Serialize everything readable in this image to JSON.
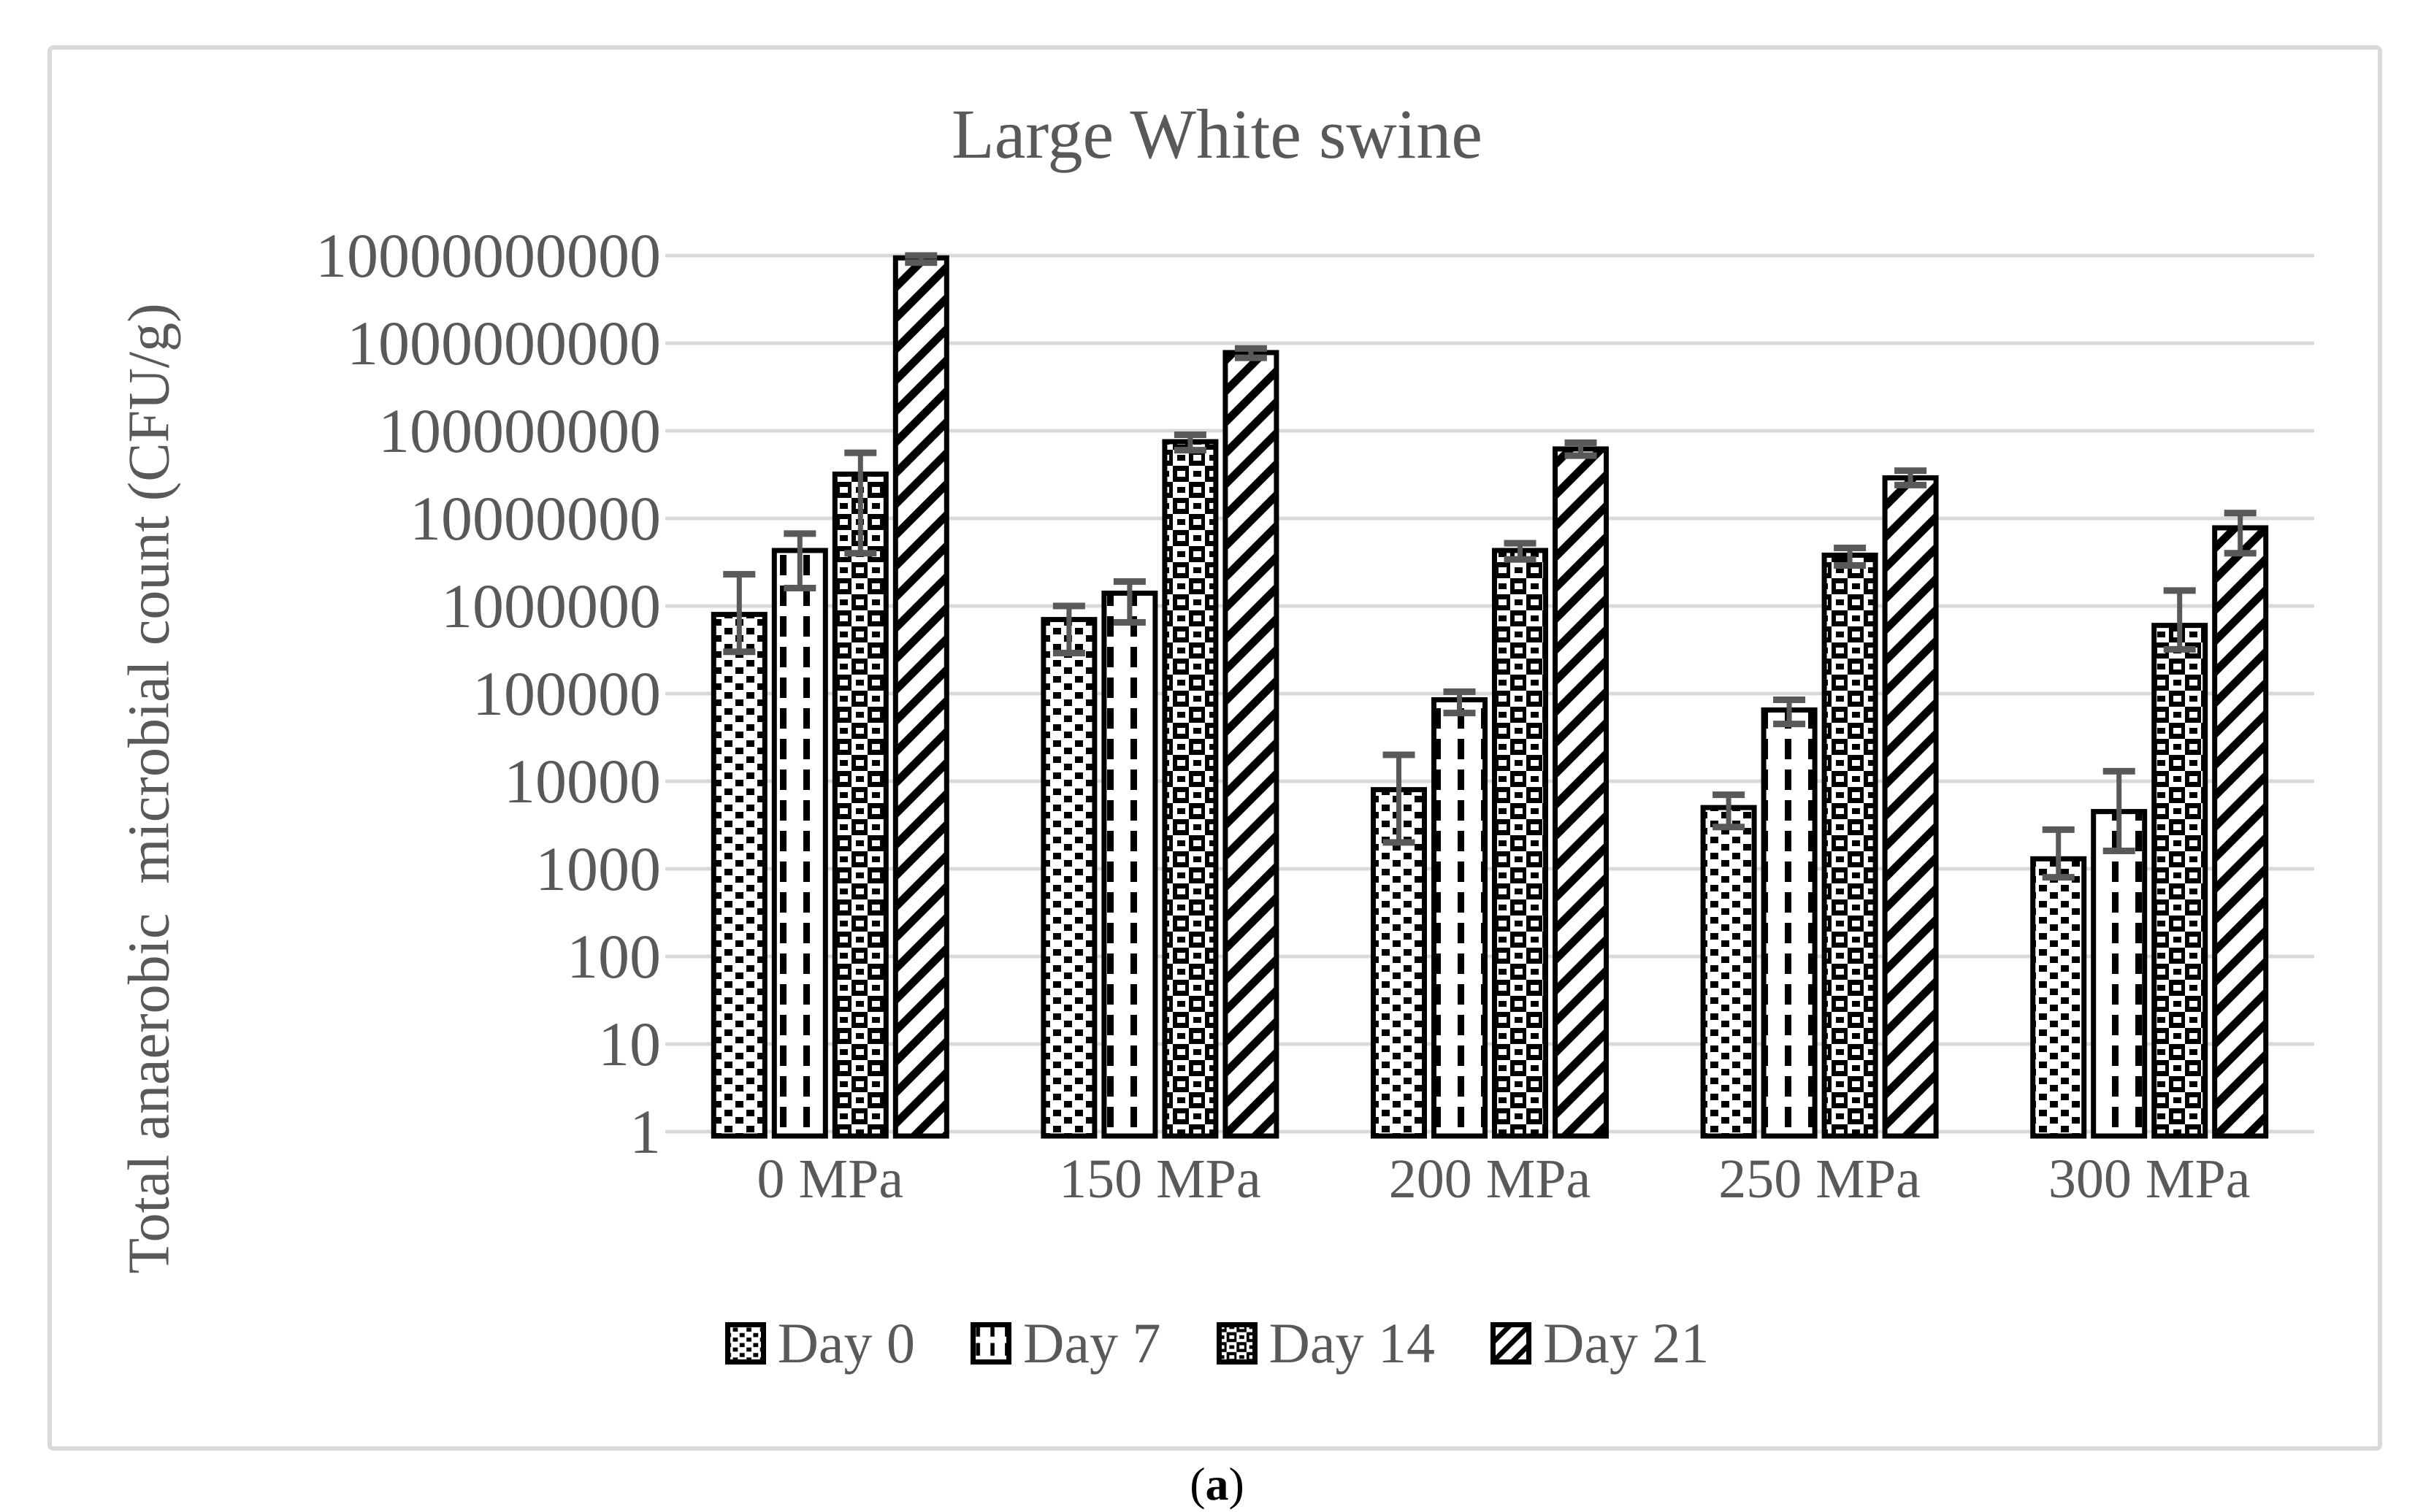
{
  "figure": {
    "title": "Large White swine",
    "caption": {
      "open": "(",
      "letter": "a",
      "close": ")"
    },
    "colors": {
      "text": "#595959",
      "gridline": "#d9d9d9",
      "frame": "#d9d9d9",
      "error_bar": "#595959",
      "bar_outline": "#000000",
      "background": "#ffffff"
    }
  },
  "chart_data": {
    "type": "bar",
    "title": "Large White swine",
    "xlabel": "",
    "ylabel": "Total anaerobic  microbial count (CFU/g)",
    "y_scale": "log",
    "ylim": [
      1,
      10000000000
    ],
    "grid": "horizontal",
    "legend_position": "bottom",
    "ytick_labels": [
      "1",
      "10",
      "100",
      "1000",
      "10000",
      "100000",
      "1000000",
      "10000000",
      "100000000",
      "1000000000",
      "10000000000"
    ],
    "categories": [
      "0 MPa",
      "150 MPa",
      "200 MPa",
      "250 MPa",
      "300 MPa"
    ],
    "series": [
      {
        "name": "Day 0",
        "pattern": "speckle-dashes",
        "values": [
          800000,
          700000,
          8000,
          5000,
          1300
        ],
        "err_hi": [
          2300000,
          1000000,
          20000,
          7000,
          2800
        ],
        "err_lo": [
          300000,
          290000,
          2000,
          3000,
          800
        ]
      },
      {
        "name": "Day 7",
        "pattern": "vertical-dashes",
        "values": [
          4300000,
          1400000,
          85000,
          65000,
          4500
        ],
        "err_hi": [
          6700000,
          1900000,
          105000,
          85000,
          13000
        ],
        "err_lo": [
          1600000,
          650000,
          60000,
          45000,
          1600
        ]
      },
      {
        "name": "Day 14",
        "pattern": "checker-weave",
        "values": [
          32000000,
          75000000,
          4300000,
          3800000,
          600000
        ],
        "err_hi": [
          56000000,
          90000000,
          5200000,
          4600000,
          1500000
        ],
        "err_lo": [
          4000000,
          60000000,
          3400000,
          2900000,
          320000
        ]
      },
      {
        "name": "Day 21",
        "pattern": "diagonal-up",
        "values": [
          9400000000,
          780000000,
          62000000,
          29000000,
          7800000
        ],
        "err_hi": [
          10000000000,
          870000000,
          73000000,
          35000000,
          11500000
        ],
        "err_lo": [
          8300000000,
          680000000,
          52000000,
          24000000,
          4000000
        ]
      }
    ]
  }
}
